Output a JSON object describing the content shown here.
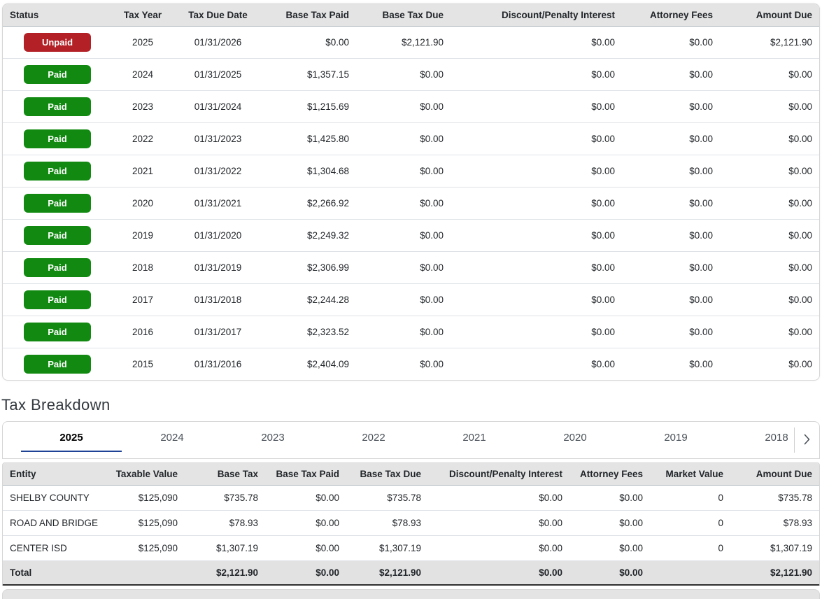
{
  "colors": {
    "unpaid_badge": "#b32025",
    "paid_badge": "#128a12",
    "tab_underline": "#1e4296",
    "header_bg": "#e4e4e4",
    "total_row_bg": "#e2e2e2"
  },
  "icons": {
    "tabs_next": "chevron-right"
  },
  "tax_summary_table": {
    "columns": [
      "Status",
      "Tax Year",
      "Tax Due Date",
      "Base Tax Paid",
      "Base Tax Due",
      "Discount/Penalty Interest",
      "Attorney Fees",
      "Amount Due"
    ],
    "rows": [
      {
        "status": "Unpaid",
        "tax_year": "2025",
        "tax_due_date": "01/31/2026",
        "base_tax_paid": "$0.00",
        "base_tax_due": "$2,121.90",
        "discount_penalty_interest": "$0.00",
        "attorney_fees": "$0.00",
        "amount_due": "$2,121.90"
      },
      {
        "status": "Paid",
        "tax_year": "2024",
        "tax_due_date": "01/31/2025",
        "base_tax_paid": "$1,357.15",
        "base_tax_due": "$0.00",
        "discount_penalty_interest": "$0.00",
        "attorney_fees": "$0.00",
        "amount_due": "$0.00"
      },
      {
        "status": "Paid",
        "tax_year": "2023",
        "tax_due_date": "01/31/2024",
        "base_tax_paid": "$1,215.69",
        "base_tax_due": "$0.00",
        "discount_penalty_interest": "$0.00",
        "attorney_fees": "$0.00",
        "amount_due": "$0.00"
      },
      {
        "status": "Paid",
        "tax_year": "2022",
        "tax_due_date": "01/31/2023",
        "base_tax_paid": "$1,425.80",
        "base_tax_due": "$0.00",
        "discount_penalty_interest": "$0.00",
        "attorney_fees": "$0.00",
        "amount_due": "$0.00"
      },
      {
        "status": "Paid",
        "tax_year": "2021",
        "tax_due_date": "01/31/2022",
        "base_tax_paid": "$1,304.68",
        "base_tax_due": "$0.00",
        "discount_penalty_interest": "$0.00",
        "attorney_fees": "$0.00",
        "amount_due": "$0.00"
      },
      {
        "status": "Paid",
        "tax_year": "2020",
        "tax_due_date": "01/31/2021",
        "base_tax_paid": "$2,266.92",
        "base_tax_due": "$0.00",
        "discount_penalty_interest": "$0.00",
        "attorney_fees": "$0.00",
        "amount_due": "$0.00"
      },
      {
        "status": "Paid",
        "tax_year": "2019",
        "tax_due_date": "01/31/2020",
        "base_tax_paid": "$2,249.32",
        "base_tax_due": "$0.00",
        "discount_penalty_interest": "$0.00",
        "attorney_fees": "$0.00",
        "amount_due": "$0.00"
      },
      {
        "status": "Paid",
        "tax_year": "2018",
        "tax_due_date": "01/31/2019",
        "base_tax_paid": "$2,306.99",
        "base_tax_due": "$0.00",
        "discount_penalty_interest": "$0.00",
        "attorney_fees": "$0.00",
        "amount_due": "$0.00"
      },
      {
        "status": "Paid",
        "tax_year": "2017",
        "tax_due_date": "01/31/2018",
        "base_tax_paid": "$2,244.28",
        "base_tax_due": "$0.00",
        "discount_penalty_interest": "$0.00",
        "attorney_fees": "$0.00",
        "amount_due": "$0.00"
      },
      {
        "status": "Paid",
        "tax_year": "2016",
        "tax_due_date": "01/31/2017",
        "base_tax_paid": "$2,323.52",
        "base_tax_due": "$0.00",
        "discount_penalty_interest": "$0.00",
        "attorney_fees": "$0.00",
        "amount_due": "$0.00"
      },
      {
        "status": "Paid",
        "tax_year": "2015",
        "tax_due_date": "01/31/2016",
        "base_tax_paid": "$2,404.09",
        "base_tax_due": "$0.00",
        "discount_penalty_interest": "$0.00",
        "attorney_fees": "$0.00",
        "amount_due": "$0.00"
      }
    ]
  },
  "breakdown": {
    "title": "Tax Breakdown",
    "tabs": [
      "2025",
      "2024",
      "2023",
      "2022",
      "2021",
      "2020",
      "2019",
      "2018"
    ],
    "active_tab": "2025",
    "table": {
      "columns": [
        "Entity",
        "Taxable Value",
        "Base Tax",
        "Base Tax Paid",
        "Base Tax Due",
        "Discount/Penalty Interest",
        "Attorney Fees",
        "Market Value",
        "Amount Due"
      ],
      "rows": [
        [
          "SHELBY COUNTY",
          "$125,090",
          "$735.78",
          "$0.00",
          "$735.78",
          "$0.00",
          "$0.00",
          "0",
          "$735.78"
        ],
        [
          "ROAD AND BRIDGE",
          "$125,090",
          "$78.93",
          "$0.00",
          "$78.93",
          "$0.00",
          "$0.00",
          "0",
          "$78.93"
        ],
        [
          "CENTER ISD",
          "$125,090",
          "$1,307.19",
          "$0.00",
          "$1,307.19",
          "$0.00",
          "$0.00",
          "0",
          "$1,307.19"
        ]
      ],
      "total_row": {
        "label": "Total",
        "values": [
          "",
          "$2,121.90",
          "$0.00",
          "$2,121.90",
          "$0.00",
          "$0.00",
          "",
          "$2,121.90"
        ]
      }
    }
  }
}
